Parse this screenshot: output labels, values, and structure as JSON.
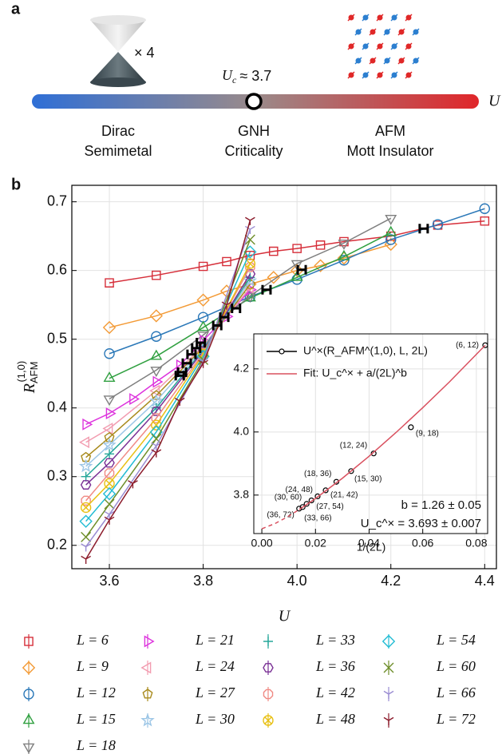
{
  "diagram": {
    "panel_label": "a",
    "multiplier": "× 4",
    "critical_symbol": "U",
    "critical_sub": "c",
    "critical_text": "≈ 3.7",
    "axis_label": "U",
    "phases": [
      {
        "line1": "Dirac",
        "line2": "Semimetal"
      },
      {
        "line1": "GNH",
        "line2": "Criticality"
      },
      {
        "line1": "AFM",
        "line2": "Mott Insulator"
      }
    ]
  },
  "chart_data": [
    {
      "type": "line",
      "panel_label": "b",
      "xlabel": "U",
      "ylabel_base": "R",
      "ylabel_sub": "AFM",
      "ylabel_sup": "(1,0)",
      "xlim": [
        3.52,
        4.425
      ],
      "ylim": [
        0.166,
        0.724
      ],
      "xticks": [
        3.6,
        3.8,
        {
          "value": 4,
          "label": "4.0"
        },
        4.2,
        4.4
      ],
      "yticks": [
        0.2,
        0.3,
        0.4,
        0.5,
        0.6,
        0.7
      ],
      "grid": true,
      "legend": "below",
      "series": [
        {
          "name": "L = 6",
          "color": "#d62f3a",
          "marker": "square",
          "x": [
            3.6,
            3.7,
            3.8,
            3.85,
            3.9,
            3.95,
            4.0,
            4.05,
            4.1,
            4.2,
            4.3,
            4.4
          ],
          "values": [
            0.582,
            0.593,
            0.606,
            0.613,
            0.622,
            0.628,
            0.632,
            0.637,
            0.642,
            0.65,
            0.666,
            0.672
          ]
        },
        {
          "name": "L = 9",
          "color": "#f39a35",
          "marker": "diamond",
          "x": [
            3.6,
            3.7,
            3.8,
            3.85,
            3.9,
            3.95,
            4.0,
            4.05,
            4.1,
            4.2
          ],
          "values": [
            0.517,
            0.534,
            0.557,
            0.57,
            0.58,
            0.59,
            0.6,
            0.607,
            0.618,
            0.638
          ]
        },
        {
          "name": "L = 12",
          "color": "#2b78b8",
          "marker": "circle",
          "x": [
            3.6,
            3.7,
            3.8,
            3.9,
            4.0,
            4.1,
            4.2,
            4.3,
            4.4
          ],
          "values": [
            0.479,
            0.504,
            0.532,
            0.562,
            0.587,
            0.615,
            0.645,
            0.667,
            0.69
          ]
        },
        {
          "name": "L = 15",
          "color": "#30a040",
          "marker": "triangle-up",
          "x": [
            3.6,
            3.7,
            3.8,
            3.9,
            4.0,
            4.1,
            4.2
          ],
          "values": [
            0.443,
            0.475,
            0.517,
            0.56,
            0.59,
            0.62,
            0.655
          ]
        },
        {
          "name": "L = 18",
          "color": "#7f7f7f",
          "marker": "triangle-down",
          "x": [
            3.6,
            3.7,
            3.8,
            3.9,
            4.0,
            4.1,
            4.2
          ],
          "values": [
            0.413,
            0.455,
            0.506,
            0.563,
            0.61,
            0.64,
            0.676
          ]
        },
        {
          "name": "L = 21",
          "color": "#dd33dd",
          "marker": "triangle-right",
          "x": [
            3.55,
            3.6,
            3.65,
            3.7,
            3.75,
            3.8,
            3.85,
            3.9
          ],
          "values": [
            0.376,
            0.392,
            0.413,
            0.438,
            0.462,
            0.498,
            0.533,
            0.572
          ]
        },
        {
          "name": "L = 24",
          "color": "#f29cb0",
          "marker": "triangle-left",
          "x": [
            3.55,
            3.6,
            3.7,
            3.8,
            3.9
          ],
          "values": [
            0.35,
            0.37,
            0.425,
            0.49,
            0.575
          ]
        },
        {
          "name": "L = 27",
          "color": "#a88a1c",
          "marker": "pentagon",
          "x": [
            3.55,
            3.6,
            3.7,
            3.8,
            3.9
          ],
          "values": [
            0.328,
            0.357,
            0.418,
            0.488,
            0.58
          ]
        },
        {
          "name": "L = 30",
          "color": "#9cc6e6",
          "marker": "star",
          "x": [
            3.55,
            3.6,
            3.7,
            3.8,
            3.9
          ],
          "values": [
            0.315,
            0.346,
            0.41,
            0.487,
            0.585
          ]
        },
        {
          "name": "L = 33",
          "color": "#26a79a",
          "marker": "plus",
          "x": [
            3.55,
            3.6,
            3.7,
            3.8,
            3.9
          ],
          "values": [
            0.3,
            0.333,
            0.4,
            0.485,
            0.59
          ]
        },
        {
          "name": "L = 36",
          "color": "#7a3095",
          "marker": "hexagon",
          "x": [
            3.55,
            3.6,
            3.7,
            3.8,
            3.9
          ],
          "values": [
            0.288,
            0.32,
            0.395,
            0.483,
            0.595
          ]
        },
        {
          "name": "L = 42",
          "color": "#f08a84",
          "marker": "octagon",
          "x": [
            3.55,
            3.6,
            3.7,
            3.8,
            3.9
          ],
          "values": [
            0.265,
            0.305,
            0.385,
            0.48,
            0.605
          ]
        },
        {
          "name": "L = 48",
          "color": "#e8c014",
          "marker": "circle-x",
          "x": [
            3.55,
            3.6,
            3.7,
            3.8,
            3.9
          ],
          "values": [
            0.255,
            0.29,
            0.375,
            0.478,
            0.61
          ]
        },
        {
          "name": "L = 54",
          "color": "#22bcd4",
          "marker": "diamond",
          "x": [
            3.55,
            3.6,
            3.7,
            3.8,
            3.9
          ],
          "values": [
            0.235,
            0.275,
            0.365,
            0.475,
            0.627
          ]
        },
        {
          "name": "L = 60",
          "color": "#6e8e2a",
          "marker": "x",
          "x": [
            3.55,
            3.6,
            3.7,
            3.8,
            3.9
          ],
          "values": [
            0.212,
            0.26,
            0.355,
            0.47,
            0.645
          ]
        },
        {
          "name": "L = 66",
          "color": "#9a8cd2",
          "marker": "tri-down",
          "x": [
            3.55,
            3.6,
            3.7,
            3.8,
            3.9
          ],
          "values": [
            0.198,
            0.245,
            0.345,
            0.468,
            0.66
          ]
        },
        {
          "name": "L = 72",
          "color": "#8c1c2c",
          "marker": "tri-down",
          "x": [
            3.55,
            3.6,
            3.65,
            3.7,
            3.75,
            3.8,
            3.85,
            3.9
          ],
          "values": [
            0.18,
            0.237,
            0.29,
            0.335,
            0.41,
            0.465,
            0.55,
            0.673
          ]
        }
      ],
      "crossings": {
        "color": "#000000",
        "x": [
          3.75,
          3.755,
          3.765,
          3.775,
          3.785,
          3.795,
          3.83,
          3.845,
          3.87,
          3.935,
          4.01,
          4.27
        ],
        "values": [
          0.447,
          0.452,
          0.465,
          0.478,
          0.487,
          0.495,
          0.52,
          0.532,
          0.545,
          0.572,
          0.601,
          0.661
        ]
      }
    },
    {
      "type": "scatter",
      "xlabel": "1/(2L)",
      "xlim": [
        -0.003,
        0.0842
      ],
      "ylim": [
        3.678,
        4.311
      ],
      "xticks": [
        {
          "value": 0,
          "label": "0.00"
        },
        {
          "value": 0.02,
          "label": "0.02"
        },
        {
          "value": 0.04,
          "label": "0.04"
        },
        {
          "value": 0.06,
          "label": "0.06"
        },
        {
          "value": 0.08,
          "label": "0.08"
        }
      ],
      "yticks": [
        3.8,
        {
          "value": 4,
          "label": "4.0"
        },
        4.2
      ],
      "grid": true,
      "legend": "upper left",
      "annotations": [
        "b = 1.26 ± 0.05",
        "U_c^× = 3.693 ± 0.007"
      ],
      "series": [
        {
          "name": "U^×(R_AFM^(1,0), L, 2L)",
          "color": "#000000",
          "marker": "circle",
          "x": [
            0.0833,
            0.0556,
            0.0417,
            0.0333,
            0.0278,
            0.0238,
            0.0208,
            0.0185,
            0.0167,
            0.0152,
            0.0139
          ],
          "values": [
            4.275,
            4.015,
            3.932,
            3.876,
            3.842,
            3.815,
            3.796,
            3.783,
            3.772,
            3.762,
            3.757
          ],
          "point_labels": [
            "(6, 12)",
            "(9, 18)",
            "(12, 24)",
            "(15, 30)",
            "(18, 36)",
            "(21, 42)",
            "(24, 48)",
            "(27, 54)",
            "(30, 60)",
            "(33, 66)",
            "(36, 72)"
          ]
        },
        {
          "name": "Fit: U_c^× + a/(2L)^b",
          "color": "#d9505f",
          "marker": "none",
          "x": [
            0.0139,
            0.02,
            0.03,
            0.04,
            0.05,
            0.06,
            0.07,
            0.0833
          ],
          "values": [
            3.754,
            3.789,
            3.853,
            3.923,
            3.998,
            4.077,
            4.159,
            4.275
          ]
        },
        {
          "color": "#d9505f",
          "marker": "none",
          "dashed": true,
          "x": [
            0,
            0.005,
            0.01,
            0.0139
          ],
          "values": [
            3.693,
            3.71,
            3.733,
            3.754
          ]
        }
      ]
    }
  ]
}
